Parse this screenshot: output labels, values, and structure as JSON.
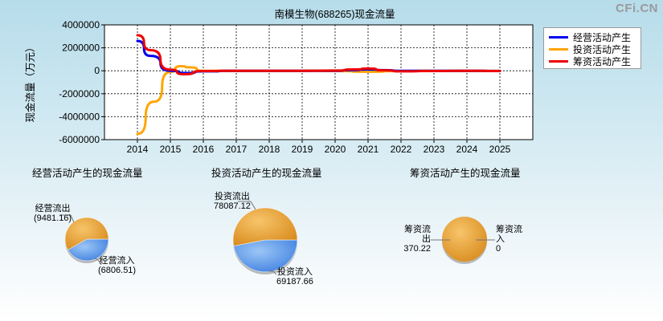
{
  "watermark": "CFi.CN",
  "colors": {
    "operating": "#0000ee",
    "investing": "#ffa500",
    "financing": "#ee0000",
    "pie_orange": "#eba43c",
    "pie_blue": "#5c9aea"
  },
  "chart_data": [
    {
      "type": "line",
      "title": "南模生物(688265)现金流量",
      "ylabel": "现金流量（万元）",
      "xlabel": "",
      "x_ticks": [
        "2014",
        "2015",
        "2016",
        "2017",
        "2018",
        "2019",
        "2020",
        "2021",
        "2022",
        "2023",
        "2024",
        "2025"
      ],
      "y_ticks": [
        "4000000",
        "2000000",
        "0",
        "-2000000",
        "-4000000",
        "-6000000"
      ],
      "ylim": [
        -6000000,
        4000000
      ],
      "xlim": [
        2013,
        2026
      ],
      "grid": true,
      "legend_position": "top-right",
      "series": [
        {
          "name": "经营活动产生",
          "color_key": "operating",
          "points": [
            [
              2014,
              2600000
            ],
            [
              2014.4,
              1300000
            ],
            [
              2015,
              0
            ],
            [
              2015.5,
              -200000
            ],
            [
              2016,
              -50000
            ],
            [
              2017,
              0
            ],
            [
              2018,
              0
            ],
            [
              2019,
              0
            ],
            [
              2020,
              0
            ],
            [
              2020.5,
              60000
            ],
            [
              2021,
              120000
            ],
            [
              2021.5,
              60000
            ],
            [
              2022,
              0
            ],
            [
              2023,
              0
            ],
            [
              2024,
              0
            ],
            [
              2025,
              -10000
            ]
          ]
        },
        {
          "name": "投资活动产生",
          "color_key": "investing",
          "points": [
            [
              2014,
              -5500000
            ],
            [
              2014.5,
              -2700000
            ],
            [
              2015,
              -100000
            ],
            [
              2015.3,
              400000
            ],
            [
              2015.6,
              300000
            ],
            [
              2016,
              0
            ],
            [
              2017,
              0
            ],
            [
              2018,
              0
            ],
            [
              2019,
              0
            ],
            [
              2020,
              -20000
            ],
            [
              2021,
              -80000
            ],
            [
              2022,
              -20000
            ],
            [
              2023,
              0
            ],
            [
              2024,
              0
            ],
            [
              2025,
              -10000
            ]
          ]
        },
        {
          "name": "筹资活动产生",
          "color_key": "financing",
          "points": [
            [
              2014,
              3100000
            ],
            [
              2014.4,
              1800000
            ],
            [
              2015,
              100000
            ],
            [
              2015.4,
              -300000
            ],
            [
              2016,
              -20000
            ],
            [
              2017,
              0
            ],
            [
              2018,
              0
            ],
            [
              2019,
              0
            ],
            [
              2020,
              20000
            ],
            [
              2020.6,
              120000
            ],
            [
              2021,
              200000
            ],
            [
              2021.5,
              40000
            ],
            [
              2022,
              -50000
            ],
            [
              2023,
              -20000
            ],
            [
              2024,
              0
            ],
            [
              2025,
              -20000
            ]
          ]
        }
      ]
    },
    {
      "type": "pie",
      "title": "经营活动产生的现金流量",
      "slices": [
        {
          "label": "经营流出",
          "value": 9481.16,
          "display": "(9481.16)",
          "color_key": "pie_orange"
        },
        {
          "label": "经营流入",
          "value": 6806.51,
          "display": "(6806.51)",
          "color_key": "pie_blue"
        }
      ]
    },
    {
      "type": "pie",
      "title": "投资活动产生的现金流量",
      "slices": [
        {
          "label": "投资流出",
          "value": 78087.12,
          "display": "78087.12",
          "color_key": "pie_orange"
        },
        {
          "label": "投资流入",
          "value": 69187.66,
          "display": "69187.66",
          "color_key": "pie_blue"
        }
      ]
    },
    {
      "type": "pie",
      "title": "筹资活动产生的现金流量",
      "slices": [
        {
          "label": "筹资流出",
          "value": 370.22,
          "display": "370.22",
          "color_key": "pie_orange"
        },
        {
          "label": "筹资流入",
          "value": 0,
          "display": "0",
          "color_key": "pie_blue"
        }
      ]
    }
  ]
}
